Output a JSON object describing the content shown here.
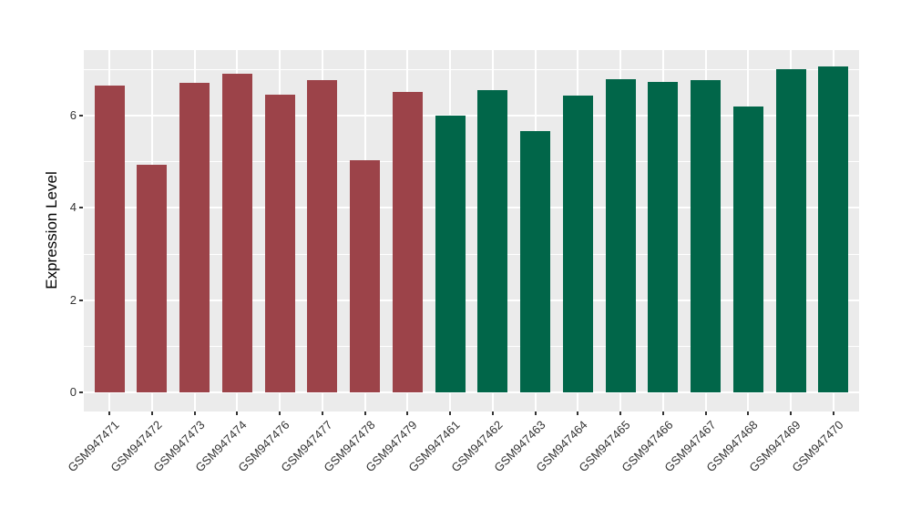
{
  "chart_data": {
    "type": "bar",
    "title": "",
    "xlabel": "",
    "ylabel": "Expression Level",
    "ylim": [
      0,
      7.4
    ],
    "yticks": [
      0,
      2,
      4,
      6
    ],
    "minor_gridlines": [
      1,
      3,
      5,
      7
    ],
    "grid": true,
    "legend_position": "none",
    "panel_background": "#EBEBEB",
    "gridline_color": "#FFFFFF",
    "tick_color": "#333333",
    "axis_text_color": "#333333",
    "series": [
      {
        "name": "group-red",
        "color": "#9C4349",
        "points": [
          {
            "label": "GSM947471",
            "value": 6.66
          },
          {
            "label": "GSM947472",
            "value": 4.93
          },
          {
            "label": "GSM947473",
            "value": 6.71
          },
          {
            "label": "GSM947474",
            "value": 6.91
          },
          {
            "label": "GSM947476",
            "value": 6.45
          },
          {
            "label": "GSM947477",
            "value": 6.76
          },
          {
            "label": "GSM947478",
            "value": 5.04
          },
          {
            "label": "GSM947479",
            "value": 6.51
          }
        ]
      },
      {
        "name": "group-green",
        "color": "#016649",
        "points": [
          {
            "label": "GSM947461",
            "value": 6.0
          },
          {
            "label": "GSM947462",
            "value": 6.55
          },
          {
            "label": "GSM947463",
            "value": 5.66
          },
          {
            "label": "GSM947464",
            "value": 6.43
          },
          {
            "label": "GSM947465",
            "value": 6.78
          },
          {
            "label": "GSM947466",
            "value": 6.73
          },
          {
            "label": "GSM947467",
            "value": 6.76
          },
          {
            "label": "GSM947468",
            "value": 6.19
          },
          {
            "label": "GSM947469",
            "value": 7.01
          },
          {
            "label": "GSM947470",
            "value": 7.06
          }
        ]
      }
    ]
  }
}
